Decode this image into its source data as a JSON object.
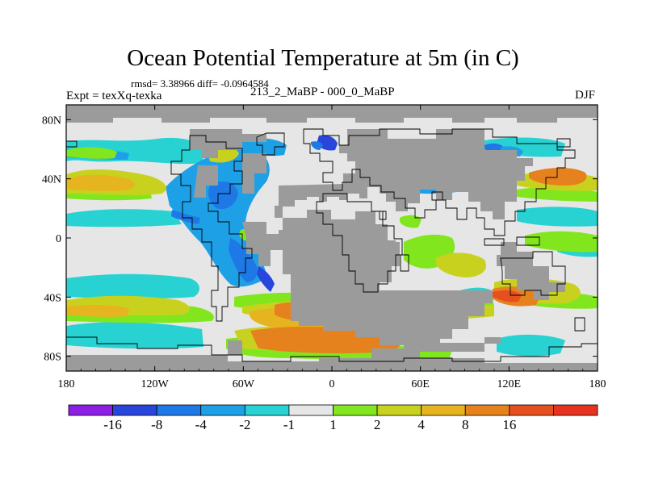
{
  "title": "Ocean Potential Temperature at 5m (in C)",
  "stats": "rmsd= 3.38966 diff= -0.0964584",
  "expt": "Expt = texXq-texka",
  "comparison": "213_2_MaBP - 000_0_MaBP",
  "season": "DJF",
  "map": {
    "lon_ticks": [
      "180",
      "120W",
      "60W",
      "0",
      "60E",
      "120E",
      "180"
    ],
    "lat_ticks": [
      "80N",
      "40N",
      "0",
      "40S",
      "80S"
    ],
    "land_color": "#9b9b9b"
  },
  "colorbar": {
    "colors": [
      "#8c1ee6",
      "#2846dc",
      "#1e78e6",
      "#1ea0e6",
      "#28d2d2",
      "#e6e6e6",
      "#82e61e",
      "#c8d21e",
      "#e6b41e",
      "#e6821e",
      "#e6501e",
      "#e6321e"
    ],
    "labels": [
      "-16",
      "-8",
      "-4",
      "-2",
      "-1",
      "1",
      "2",
      "4",
      "8",
      "16"
    ]
  }
}
